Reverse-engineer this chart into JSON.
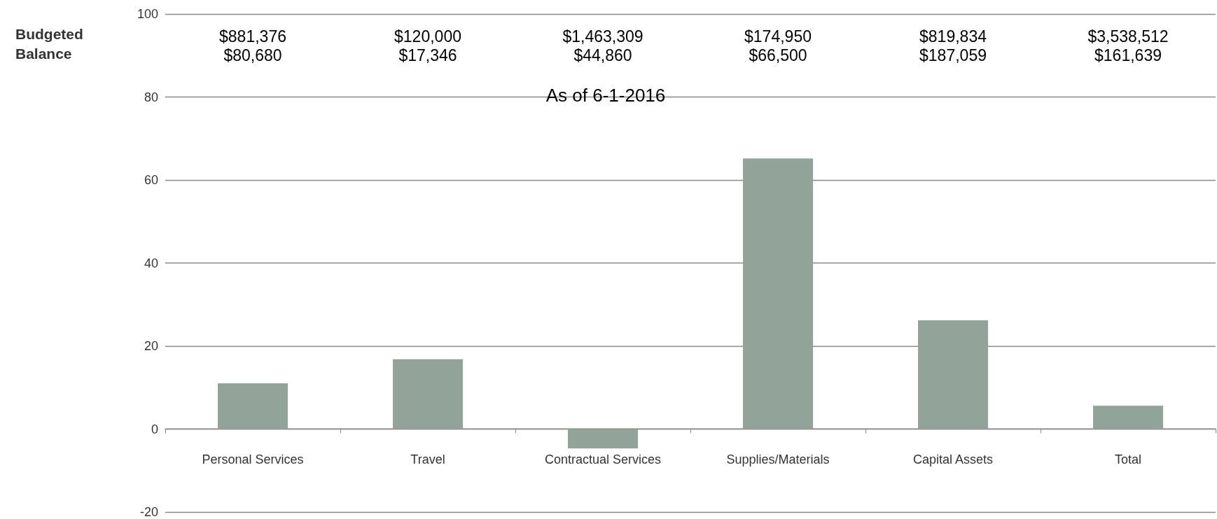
{
  "chart_data": {
    "type": "bar",
    "title": "As of 6-1-2016",
    "ylabel": "Budgeted Balance",
    "categories": [
      "Personal Services",
      "Travel",
      "Contractual Services",
      "Supplies/Materials",
      "Capital Assets",
      "Total"
    ],
    "values": [
      11,
      16.8,
      -4.7,
      65.2,
      26.2,
      5.6
    ],
    "color": "#92a399",
    "ylim": [
      -20,
      100
    ],
    "yticks": [
      -20,
      0,
      20,
      40,
      60,
      80,
      100
    ],
    "grid": "y",
    "annotations": [
      "$881,376",
      "$80,680",
      "$120,000",
      "$17,346",
      "$1,463,309",
      "$44,860",
      "$174,950",
      "$66,500",
      "$819,834",
      "$187,059",
      "$3,538,512",
      "$161,639"
    ]
  }
}
